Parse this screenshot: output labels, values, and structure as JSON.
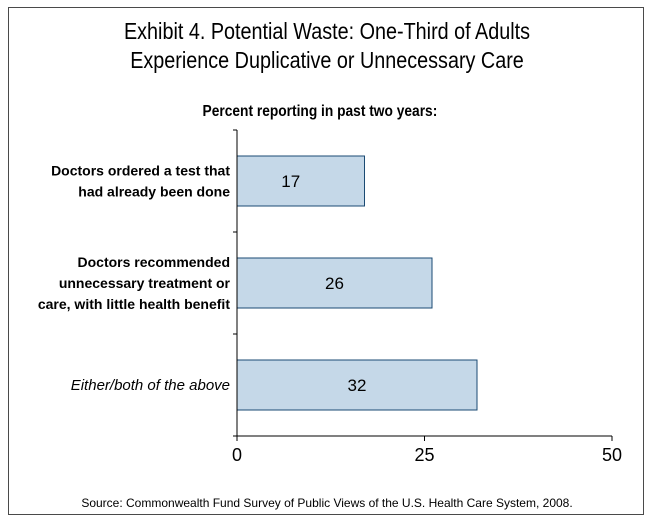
{
  "title_line1": "Exhibit 4. Potential Waste: One-Third of Adults",
  "title_line2": "Experience Duplicative or Unnecessary Care",
  "subtitle": "Percent reporting in past two years:",
  "source": "Source: Commonwealth Fund Survey of Public Views of the U.S. Health Care System, 2008.",
  "colors": {
    "bar_fill": "#c5d8e8",
    "bar_stroke": "#1a4a73",
    "axis": "#000000"
  },
  "chart_data": {
    "type": "bar",
    "orientation": "horizontal",
    "title": "Exhibit 4. Potential Waste: One-Third of Adults Experience Duplicative or Unnecessary Care",
    "subtitle": "Percent reporting in past two years:",
    "categories": [
      [
        "Doctors ordered a test that",
        "had already been done"
      ],
      [
        "Doctors recommended",
        "unnecessary treatment or",
        "care, with little health benefit"
      ],
      [
        "Either/both of the above"
      ]
    ],
    "category_italic": [
      false,
      false,
      true
    ],
    "values": [
      17,
      26,
      32
    ],
    "data_labels": [
      "17",
      "26",
      "32"
    ],
    "xlim": [
      0,
      50
    ],
    "xticks": [
      0,
      25,
      50
    ],
    "xtick_labels": [
      "0",
      "25",
      "50"
    ],
    "grid": false,
    "legend": "none"
  }
}
